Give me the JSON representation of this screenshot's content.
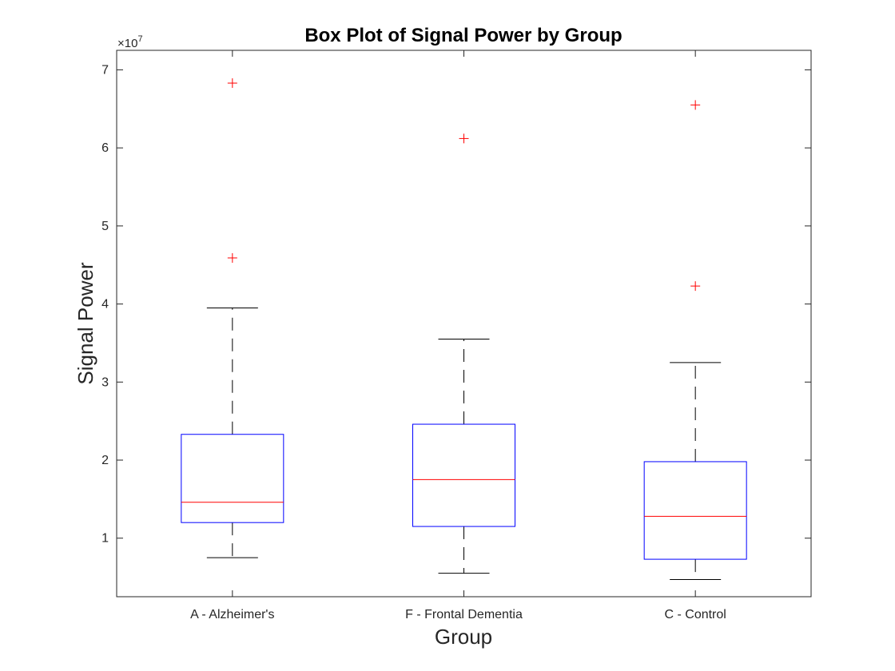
{
  "chart_data": {
    "type": "box",
    "title": "Box Plot of Signal Power by Group",
    "xlabel": "Group",
    "ylabel": "Signal Power",
    "y_exponent_label": "×10",
    "y_exponent": "7",
    "y_scale": 10000000,
    "ylim": [
      0.25,
      7.25
    ],
    "yticks": [
      1,
      2,
      3,
      4,
      5,
      6,
      7
    ],
    "ytick_labels": [
      "1",
      "2",
      "3",
      "4",
      "5",
      "6",
      "7"
    ],
    "categories": [
      "A - Alzheimer's",
      "F - Frontal Dementia",
      "C - Control"
    ],
    "series": [
      {
        "category": "A - Alzheimer's",
        "whisker_low": 0.75,
        "q1": 1.2,
        "median": 1.46,
        "q3": 2.33,
        "whisker_high": 3.95,
        "outliers": [
          4.59,
          6.83
        ]
      },
      {
        "category": "F - Frontal Dementia",
        "whisker_low": 0.55,
        "q1": 1.15,
        "median": 1.75,
        "q3": 2.46,
        "whisker_high": 3.55,
        "outliers": [
          6.12
        ]
      },
      {
        "category": "C - Control",
        "whisker_low": 0.47,
        "q1": 0.73,
        "median": 1.28,
        "q3": 1.98,
        "whisker_high": 3.25,
        "outliers": [
          4.23,
          6.55
        ]
      }
    ],
    "colors": {
      "box": "#0000ff",
      "median": "#ff0000",
      "whisker": "#000000",
      "outlier": "#ff0000",
      "axis": "#262626"
    },
    "grid": false,
    "legend": "none"
  }
}
